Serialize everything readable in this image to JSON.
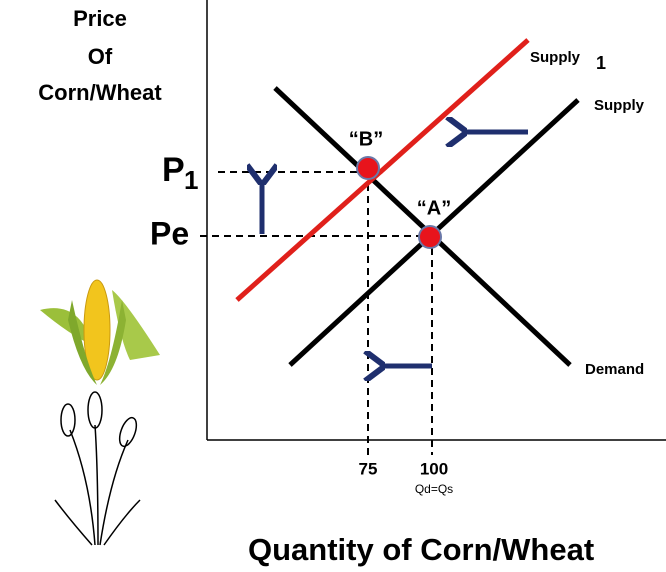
{
  "axis": {
    "y_title": [
      "Price",
      "Of",
      "Corn/Wheat"
    ],
    "x_title": "Quantity of  Corn/Wheat"
  },
  "curves": {
    "supply_new": {
      "label": "Supply",
      "sub": "1"
    },
    "supply_original": {
      "label": "Supply"
    },
    "demand": {
      "label": "Demand"
    }
  },
  "points": {
    "b": "“B”",
    "a": "“A”"
  },
  "prices": {
    "p1": {
      "main": "P",
      "sub": "1"
    },
    "pe": "Pe"
  },
  "quantities": {
    "q1": "75",
    "q0": "100",
    "note": "Qd=Qs"
  }
}
